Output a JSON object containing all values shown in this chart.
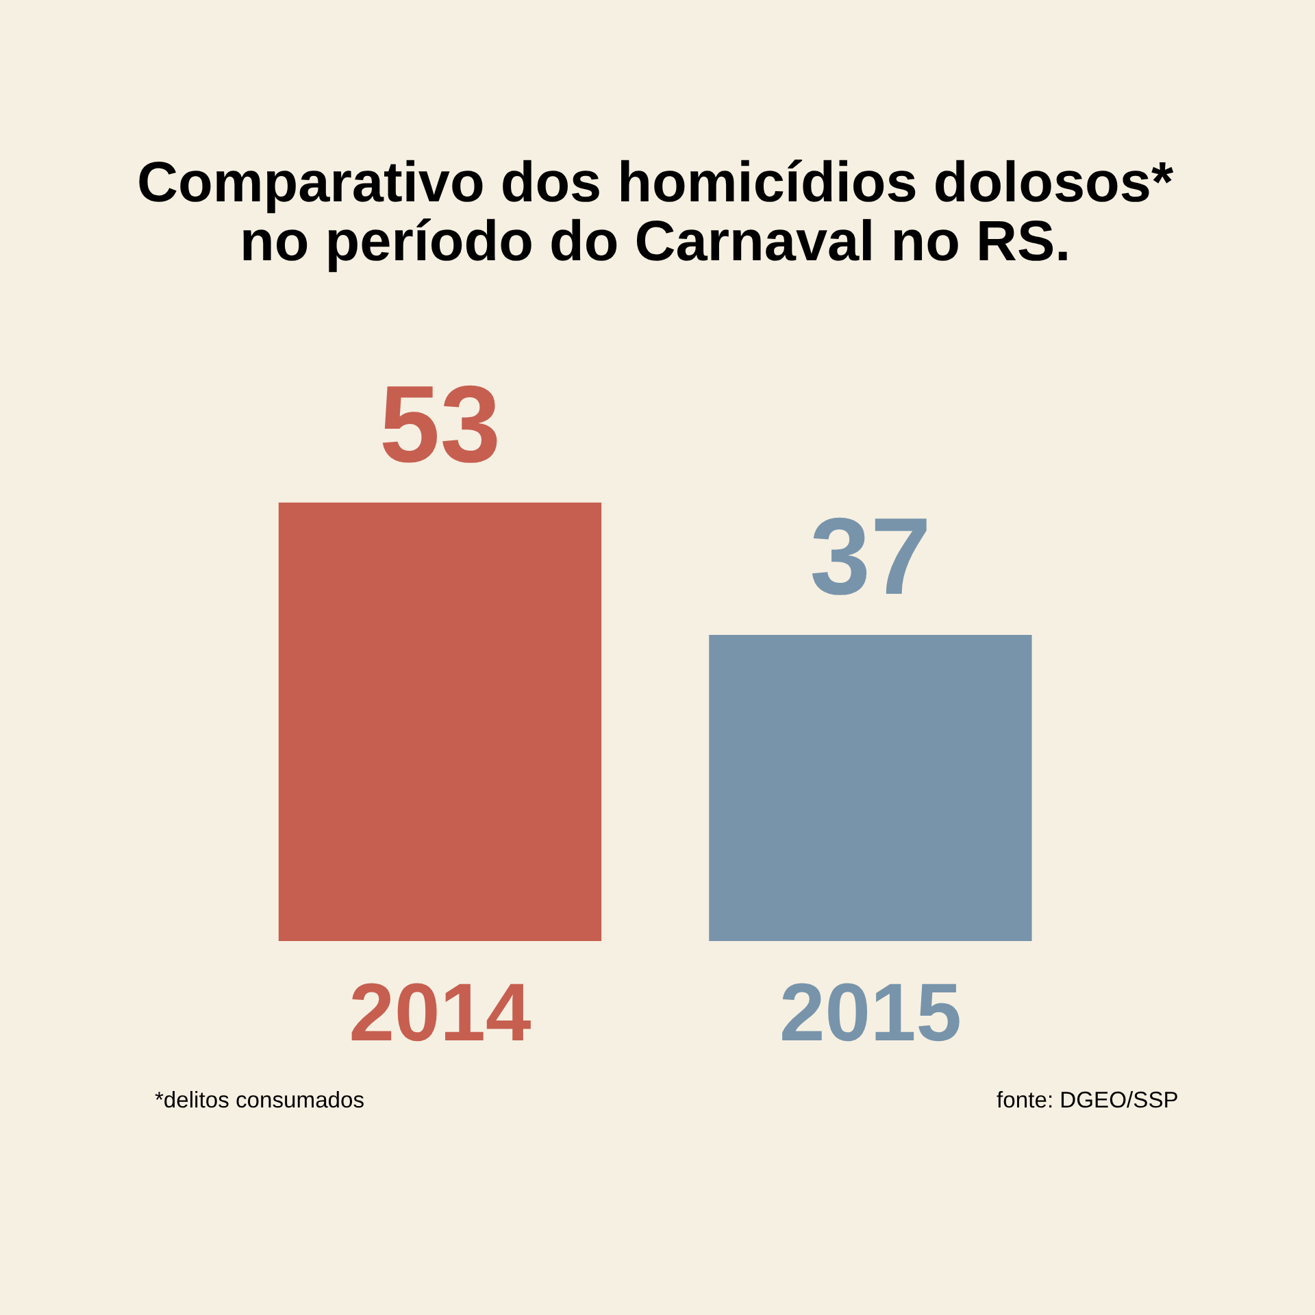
{
  "chart_data": {
    "type": "bar",
    "title": "Comparativo dos homicídios dolosos*\nno período do Carnaval no RS.",
    "categories": [
      "2014",
      "2015"
    ],
    "values": [
      53,
      37
    ],
    "colors": [
      "#c65f50",
      "#7794ab"
    ],
    "data_labels": true,
    "tick_labels": "x",
    "annotations": [
      "*delitos consumados",
      "fonte: DGEO/SSP"
    ]
  }
}
